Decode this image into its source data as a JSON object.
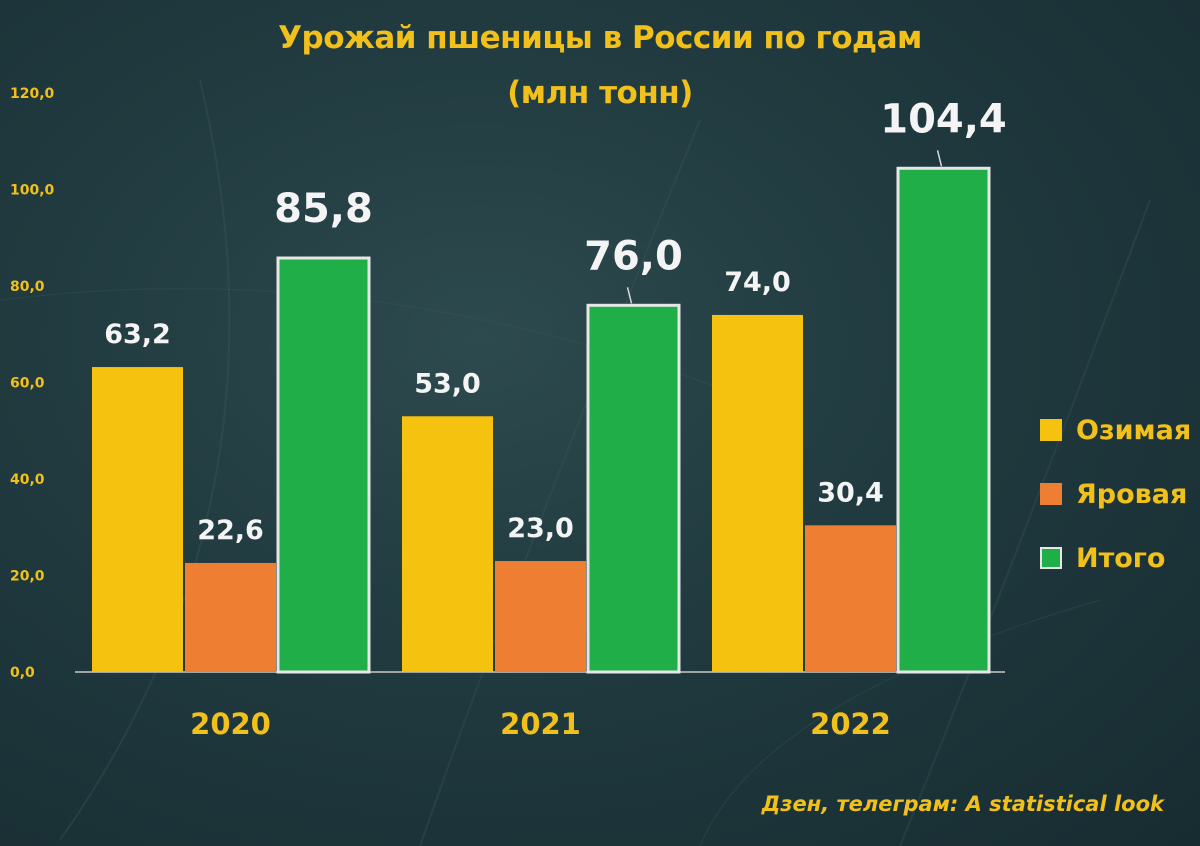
{
  "chart_data": {
    "type": "bar",
    "title": "Урожай пшеницы в России по годам",
    "subtitle": "(млн тонн)",
    "categories": [
      "2020",
      "2021",
      "2022"
    ],
    "ylim": [
      0,
      120
    ],
    "yticks": [
      "0,0",
      "20,0",
      "40,0",
      "60,0",
      "80,0",
      "100,0",
      "120,0"
    ],
    "grid": false,
    "legend_position": "right",
    "series": [
      {
        "name": "Озимая",
        "values": [
          63.2,
          53.0,
          74.0
        ],
        "labels": [
          "63,2",
          "53,0",
          "74,0"
        ],
        "color": "#f5c20f"
      },
      {
        "name": "Яровая",
        "values": [
          22.6,
          23.0,
          30.4
        ],
        "labels": [
          "22,6",
          "23,0",
          "30,4"
        ],
        "color": "#ee7e32"
      },
      {
        "name": "Итого",
        "values": [
          85.8,
          76.0,
          104.4
        ],
        "labels": [
          "85,8",
          "76,0",
          "104,4"
        ],
        "color": "#1fae48"
      }
    ]
  },
  "source": "Дзен, телеграм: A statistical look"
}
